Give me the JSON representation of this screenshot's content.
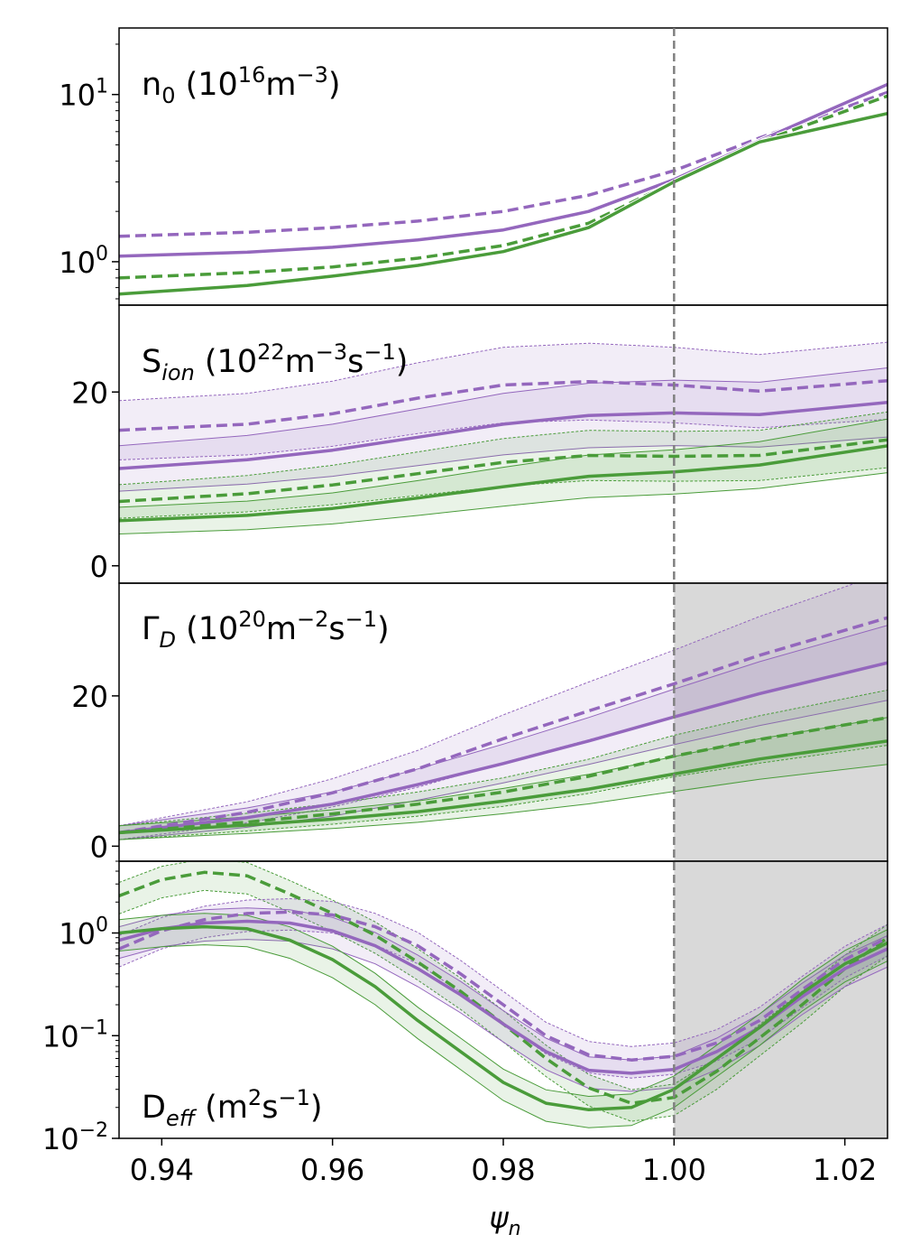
{
  "chart_data": {
    "type": "line",
    "shared_x": {
      "label": "ψ",
      "label_sub": "n",
      "range": [
        0.935,
        1.025
      ],
      "ticks": [
        0.94,
        0.96,
        0.98,
        1.0,
        1.02
      ],
      "tick_labels": [
        "0.94",
        "0.96",
        "0.98",
        "1.00",
        "1.02"
      ]
    },
    "separatrix": 1.0,
    "colors": {
      "purple": "#9467bd",
      "green": "#4a9c3a",
      "separatrix": "#808080",
      "shade": "#c0c0c0"
    },
    "panels": [
      {
        "title_main": "n",
        "title_sub": "0",
        "title_rest": " (10",
        "title_sup": "16",
        "title_unit": "m",
        "title_unit_sup": "−3",
        "title_end": ")",
        "yscale": "log",
        "ylim": [
          0.55,
          25
        ],
        "ticks": [
          {
            "v": 1,
            "base": "10",
            "exp": "0"
          },
          {
            "v": 10,
            "base": "10",
            "exp": "1"
          }
        ],
        "series": [
          {
            "name": "purple-dashed",
            "color": "purple",
            "dash": true,
            "x": [
              0.935,
              0.95,
              0.96,
              0.97,
              0.98,
              0.99,
              1.0,
              1.01,
              1.025
            ],
            "y": [
              1.42,
              1.5,
              1.6,
              1.75,
              2.0,
              2.5,
              3.5,
              5.5,
              10.3
            ]
          },
          {
            "name": "purple-solid",
            "color": "purple",
            "dash": false,
            "x": [
              0.935,
              0.95,
              0.96,
              0.97,
              0.98,
              0.99,
              1.0,
              1.01,
              1.025
            ],
            "y": [
              1.08,
              1.14,
              1.22,
              1.35,
              1.55,
              2.0,
              3.1,
              5.3,
              11.5
            ]
          },
          {
            "name": "green-dashed",
            "color": "green",
            "dash": true,
            "x": [
              0.935,
              0.95,
              0.96,
              0.97,
              0.98,
              0.99,
              1.0,
              1.01,
              1.025
            ],
            "y": [
              0.8,
              0.86,
              0.93,
              1.05,
              1.25,
              1.7,
              3.0,
              5.2,
              9.8
            ]
          },
          {
            "name": "green-solid",
            "color": "green",
            "dash": false,
            "x": [
              0.935,
              0.95,
              0.96,
              0.97,
              0.98,
              0.99,
              1.0,
              1.01,
              1.025
            ],
            "y": [
              0.64,
              0.72,
              0.82,
              0.95,
              1.15,
              1.6,
              3.0,
              5.2,
              7.7
            ]
          }
        ]
      },
      {
        "title_main": "S",
        "title_sub": "ion",
        "title_rest": " (10",
        "title_sup": "22",
        "title_unit": "m",
        "title_unit_sup": "−3",
        "title_unit2": "s",
        "title_unit2_sup": "−1",
        "title_end": ")",
        "yscale": "linear",
        "ylim": [
          -2,
          30
        ],
        "ticks": [
          {
            "v": 0,
            "label": "0"
          },
          {
            "v": 20,
            "label": "20"
          }
        ],
        "series": [
          {
            "name": "purple-dashed",
            "color": "purple",
            "dash": true,
            "x": [
              0.935,
              0.95,
              0.96,
              0.97,
              0.98,
              0.99,
              1.0,
              1.01,
              1.025
            ],
            "y": [
              15.6,
              16.3,
              17.5,
              19.3,
              20.8,
              21.2,
              20.8,
              20.1,
              21.3
            ]
          },
          {
            "name": "purple-solid",
            "color": "purple",
            "dash": false,
            "x": [
              0.935,
              0.95,
              0.96,
              0.97,
              0.98,
              0.99,
              1.0,
              1.01,
              1.025
            ],
            "y": [
              11.2,
              12.2,
              13.3,
              14.8,
              16.3,
              17.3,
              17.6,
              17.4,
              18.8
            ]
          },
          {
            "name": "green-dashed",
            "color": "green",
            "dash": true,
            "x": [
              0.935,
              0.95,
              0.96,
              0.97,
              0.98,
              0.99,
              1.0,
              1.01,
              1.025
            ],
            "y": [
              7.4,
              8.3,
              9.3,
              10.6,
              11.9,
              12.7,
              12.6,
              12.7,
              14.5
            ]
          },
          {
            "name": "green-solid",
            "color": "green",
            "dash": false,
            "x": [
              0.935,
              0.95,
              0.96,
              0.97,
              0.98,
              0.99,
              1.0,
              1.01,
              1.025
            ],
            "y": [
              5.2,
              5.8,
              6.6,
              7.8,
              9.1,
              10.3,
              10.8,
              11.6,
              13.8
            ]
          }
        ]
      },
      {
        "title_main": "Γ",
        "title_sub": "D",
        "title_rest": " (10",
        "title_sup": "20",
        "title_unit": "m",
        "title_unit_sup": "−2",
        "title_unit2": "s",
        "title_unit2_sup": "−1",
        "title_end": ")",
        "yscale": "linear",
        "ylim": [
          -2,
          35
        ],
        "ticks": [
          {
            "v": 0,
            "label": "0"
          },
          {
            "v": 20,
            "label": "20"
          }
        ],
        "series": [
          {
            "name": "purple-dashed",
            "color": "purple",
            "dash": true,
            "x": [
              0.935,
              0.95,
              0.96,
              0.97,
              0.98,
              0.99,
              1.0,
              1.01,
              1.025
            ],
            "y": [
              1.8,
              4.5,
              7.1,
              10.3,
              14.3,
              18.0,
              21.6,
              25.4,
              30.4
            ]
          },
          {
            "name": "purple-solid",
            "color": "purple",
            "dash": false,
            "x": [
              0.935,
              0.95,
              0.96,
              0.97,
              0.98,
              0.99,
              1.0,
              1.01,
              1.025
            ],
            "y": [
              1.8,
              3.8,
              5.6,
              8.2,
              11.0,
              14.0,
              17.2,
              20.3,
              24.4
            ]
          },
          {
            "name": "green-dashed",
            "color": "green",
            "dash": true,
            "x": [
              0.935,
              0.95,
              0.96,
              0.97,
              0.98,
              0.99,
              1.0,
              1.01,
              1.025
            ],
            "y": [
              1.8,
              3.2,
              4.3,
              5.6,
              7.2,
              9.3,
              12.0,
              14.2,
              17.1
            ]
          },
          {
            "name": "green-solid",
            "color": "green",
            "dash": false,
            "x": [
              0.935,
              0.95,
              0.96,
              0.97,
              0.98,
              0.99,
              1.0,
              1.01,
              1.025
            ],
            "y": [
              1.8,
              2.8,
              3.6,
              4.6,
              6.0,
              7.6,
              9.6,
              11.6,
              14.0
            ]
          }
        ]
      },
      {
        "title_main": "D",
        "title_sub": "eff",
        "title_rest": " (m",
        "title_sup": "2",
        "title_unit": "s",
        "title_unit_sup": "−1",
        "title_end": ")",
        "yscale": "log",
        "ylim": [
          0.01,
          5
        ],
        "ticks": [
          {
            "v": 0.01,
            "base": "10",
            "exp": "−2"
          },
          {
            "v": 0.1,
            "base": "10",
            "exp": "−1"
          },
          {
            "v": 1,
            "base": "10",
            "exp": "0"
          }
        ],
        "series": [
          {
            "name": "green-dashed",
            "color": "green",
            "dash": true,
            "x": [
              0.935,
              0.94,
              0.945,
              0.95,
              0.955,
              0.96,
              0.965,
              0.97,
              0.975,
              0.98,
              0.985,
              0.99,
              0.995,
              1.0,
              1.005,
              1.01,
              1.015,
              1.02,
              1.025
            ],
            "y": [
              2.3,
              3.3,
              3.9,
              3.6,
              2.4,
              1.55,
              0.95,
              0.52,
              0.27,
              0.13,
              0.06,
              0.031,
              0.022,
              0.025,
              0.045,
              0.095,
              0.2,
              0.45,
              0.9
            ]
          },
          {
            "name": "purple-dashed",
            "color": "purple",
            "dash": true,
            "x": [
              0.935,
              0.94,
              0.945,
              0.95,
              0.955,
              0.96,
              0.965,
              0.97,
              0.975,
              0.98,
              0.985,
              0.99,
              0.995,
              1.0,
              1.005,
              1.01,
              1.015,
              1.02,
              1.025
            ],
            "y": [
              0.7,
              1.05,
              1.35,
              1.55,
              1.6,
              1.5,
              1.15,
              0.75,
              0.4,
              0.2,
              0.1,
              0.065,
              0.058,
              0.063,
              0.085,
              0.14,
              0.28,
              0.55,
              0.9
            ]
          },
          {
            "name": "purple-solid",
            "color": "purple",
            "dash": false,
            "x": [
              0.935,
              0.94,
              0.945,
              0.95,
              0.955,
              0.96,
              0.965,
              0.97,
              0.975,
              0.98,
              0.985,
              0.99,
              0.995,
              1.0,
              1.005,
              1.01,
              1.015,
              1.02,
              1.025
            ],
            "y": [
              0.85,
              1.1,
              1.25,
              1.3,
              1.25,
              1.05,
              0.75,
              0.45,
              0.25,
              0.13,
              0.07,
              0.046,
              0.043,
              0.047,
              0.07,
              0.12,
              0.24,
              0.45,
              0.7
            ]
          },
          {
            "name": "green-solid",
            "color": "green",
            "dash": false,
            "x": [
              0.935,
              0.94,
              0.945,
              0.95,
              0.955,
              0.96,
              0.965,
              0.97,
              0.975,
              0.98,
              0.985,
              0.99,
              0.995,
              1.0,
              1.005,
              1.01,
              1.015,
              1.02,
              1.025
            ],
            "y": [
              1.0,
              1.1,
              1.15,
              1.1,
              0.85,
              0.55,
              0.3,
              0.14,
              0.07,
              0.035,
              0.022,
              0.019,
              0.02,
              0.03,
              0.06,
              0.12,
              0.26,
              0.5,
              0.8
            ]
          }
        ]
      }
    ]
  }
}
